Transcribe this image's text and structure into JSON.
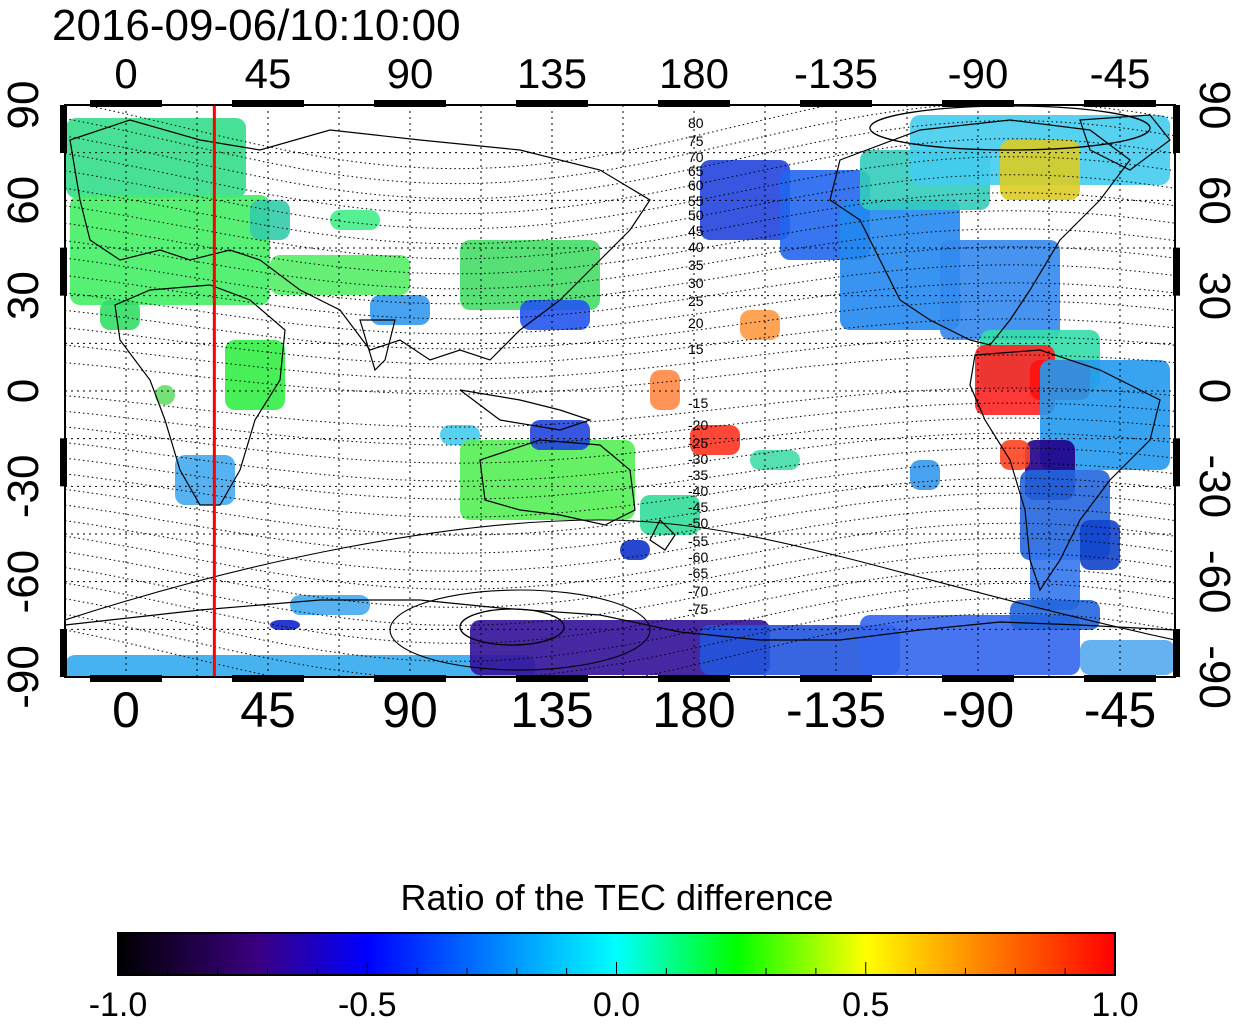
{
  "title": "2016-09-06/10:10:00",
  "map": {
    "x_ticks": [
      "0",
      "45",
      "90",
      "135",
      "180",
      "-135",
      "-90",
      "-45"
    ],
    "y_ticks": [
      "90",
      "60",
      "30",
      "0",
      "-30",
      "-60",
      "-90"
    ],
    "marker_line_longitude": 28,
    "contour_labels_north": [
      "80",
      "75",
      "70",
      "65",
      "60",
      "55",
      "50",
      "45",
      "40",
      "35",
      "30",
      "25",
      "20",
      "15"
    ],
    "contour_labels_south": [
      "-15",
      "-20",
      "-25",
      "-30",
      "-35",
      "-40",
      "-45",
      "-50",
      "-55",
      "-60",
      "-65",
      "-70",
      "-75"
    ]
  },
  "colorbar": {
    "title": "Ratio of the TEC difference",
    "ticks": [
      "-1.0",
      "-0.5",
      "0.0",
      "0.5",
      "1.0"
    ],
    "colors": [
      "#000000",
      "#3a0080",
      "#0000ff",
      "#00ffff",
      "#00ff00",
      "#ffff00",
      "#ff8000",
      "#ff0000"
    ]
  },
  "colors": {
    "marker_line": "#ff0000",
    "coast": "#000000",
    "grid": "#000000"
  }
}
